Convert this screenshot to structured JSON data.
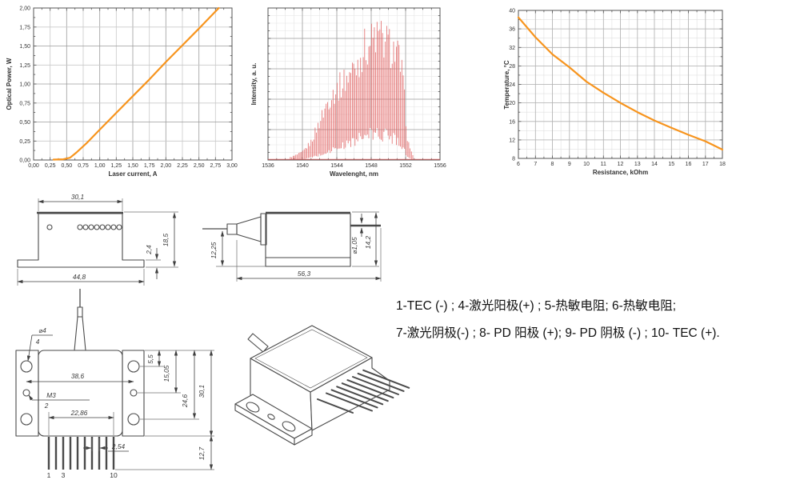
{
  "page": {
    "background": "#ffffff"
  },
  "chart_data": [
    {
      "id": "li_curve",
      "type": "line",
      "title": "",
      "xlabel": "Laser current, A",
      "ylabel": "Optical Power, W",
      "xlim": [
        0,
        3
      ],
      "ylim": [
        0,
        2
      ],
      "xtick_values": [
        0,
        0.25,
        0.5,
        0.75,
        1,
        1.25,
        1.5,
        1.75,
        2,
        2.25,
        2.5,
        2.75,
        3
      ],
      "xtick_labels": [
        "0,00",
        "0,25",
        "0,50",
        "0,75",
        "1,00",
        "1,25",
        "1,50",
        "1,75",
        "2,00",
        "2,25",
        "2,50",
        "2,75",
        "3,00"
      ],
      "ytick_values": [
        0,
        0.25,
        0.5,
        0.75,
        1,
        1.25,
        1.5,
        1.75,
        2
      ],
      "ytick_labels": [
        "0,00",
        "0,25",
        "0,50",
        "0,75",
        "1,00",
        "1,25",
        "1,50",
        "1,75",
        "2,00"
      ],
      "x_minor_step": 0.125,
      "y_minor_step": 0.125,
      "minor_grid": false,
      "grid_color": "#c9c9c9",
      "grid_emph_color": "#9b9b9b",
      "grid_emphasis_every": 2,
      "line_color": "#F7941D",
      "series": [
        {
          "name": "Optical power vs laser current",
          "x": [
            0.3,
            0.45,
            0.55,
            0.65,
            0.8,
            1.0,
            1.25,
            1.5,
            1.75,
            2.0,
            2.25,
            2.5,
            2.8
          ],
          "y": [
            0.005,
            0.01,
            0.03,
            0.1,
            0.22,
            0.4,
            0.62,
            0.84,
            1.06,
            1.29,
            1.51,
            1.73,
            2.0
          ]
        }
      ]
    },
    {
      "id": "spectrum",
      "type": "comb",
      "title": "",
      "xlabel": "Wavelenght, nm",
      "ylabel": "Intensity, a. u.",
      "xlim": [
        1536,
        1556
      ],
      "ylim": [
        0,
        1
      ],
      "xtick_values": [
        1536,
        1540,
        1544,
        1548,
        1552,
        1556
      ],
      "xtick_labels": [
        "1536",
        "1540",
        "1544",
        "1548",
        "1552",
        "1556"
      ],
      "ytick_values": [
        0.2,
        0.4,
        0.6,
        0.8
      ],
      "ytick_labels": [
        "",
        "",
        "",
        ""
      ],
      "x_minor_step": 1,
      "y_minor_step": 0.05,
      "minor_grid": true,
      "grid_color": "#9e9e9e",
      "grid_emph_color": "#9e9e9e",
      "minor_grid_color": "#e4e4e4",
      "line_color": "#E05A5A",
      "comb": {
        "pitch_nm": 0.16,
        "x_start": 1538.6,
        "x_end": 1552.9,
        "envelope_x": [
          1536,
          1538,
          1539,
          1540,
          1541,
          1542,
          1542.5,
          1543,
          1543.5,
          1544,
          1545,
          1546,
          1546.5,
          1547,
          1547.5,
          1548,
          1548.5,
          1549,
          1549.5,
          1550,
          1550.5,
          1551,
          1551.3,
          1551.6,
          1551.9,
          1552.2,
          1552.5,
          1553,
          1554,
          1556
        ],
        "envelope_hi": [
          0.004,
          0.01,
          0.03,
          0.06,
          0.14,
          0.3,
          0.38,
          0.47,
          0.52,
          0.55,
          0.63,
          0.72,
          0.76,
          0.86,
          0.89,
          0.93,
          0.97,
          0.95,
          0.93,
          0.9,
          0.87,
          0.82,
          0.78,
          0.66,
          0.45,
          0.18,
          0.08,
          0.03,
          0.01,
          0.004
        ],
        "envelope_lo": [
          0,
          0,
          0.004,
          0.008,
          0.02,
          0.045,
          0.055,
          0.07,
          0.09,
          0.1,
          0.13,
          0.17,
          0.18,
          0.2,
          0.21,
          0.22,
          0.23,
          0.22,
          0.22,
          0.21,
          0.2,
          0.19,
          0.17,
          0.13,
          0.08,
          0.03,
          0.012,
          0.005,
          0,
          0
        ]
      }
    },
    {
      "id": "ntc",
      "type": "line",
      "title": "",
      "xlabel": "Resistance, kOhm",
      "ylabel": "Temperature, °C",
      "xlim": [
        6,
        18
      ],
      "ylim": [
        8,
        40
      ],
      "xtick_values": [
        6,
        7,
        8,
        9,
        10,
        11,
        12,
        13,
        14,
        15,
        16,
        17,
        18
      ],
      "xtick_labels": [
        "6",
        "7",
        "8",
        "9",
        "10",
        "11",
        "12",
        "13",
        "14",
        "15",
        "16",
        "17",
        "18"
      ],
      "ytick_values": [
        8,
        12,
        16,
        20,
        24,
        28,
        32,
        36,
        40
      ],
      "ytick_labels": [
        "8",
        "12",
        "16",
        "20",
        "24",
        "28",
        "32",
        "36",
        "40"
      ],
      "x_minor_step": 0.5,
      "y_minor_step": 2,
      "minor_grid": true,
      "grid_color": "#b2b2b2",
      "grid_emph_color": "#b2b2b2",
      "minor_grid_color": "#e0e0e0",
      "line_color": "#F7941D",
      "series": [
        {
          "name": "Thermistor temperature vs resistance",
          "x": [
            6,
            7,
            8,
            9,
            10,
            11,
            12,
            13,
            14,
            15,
            16,
            17,
            18
          ],
          "y": [
            38.5,
            34.2,
            30.5,
            27.7,
            24.6,
            22.2,
            20.0,
            18.0,
            16.2,
            14.6,
            13.1,
            11.7,
            9.9
          ]
        }
      ]
    }
  ],
  "drawings": {
    "front": {
      "top_width": "30,1",
      "flange_width": "44,8",
      "height": "18,5",
      "flange_thickness": "2,4"
    },
    "side": {
      "fiber_height": "12,25",
      "length": "56,3",
      "pin_diameter": "⌀1,05",
      "height": "14,2"
    },
    "top": {
      "hole_diameter": "⌀4",
      "hole_qty": "4",
      "body_width": "38,6",
      "thread": "M3",
      "thread_qty": "2",
      "pin_span": "22,86",
      "pin_pitch": "2,54",
      "dim_a": "5,5",
      "dim_b": "15,05",
      "dim_c": "24,6",
      "dim_d": "30,1",
      "pin_length": "12,7",
      "pin_label_1": "1",
      "pin_label_3": "3",
      "pin_label_10": "10"
    }
  },
  "pinout": {
    "line1": "1-TEC (-) ;  4-激光阳极(+) ; 5-热敏电阻; 6-热敏电阻;",
    "line2": "7-激光阴极(-) ; 8- PD 阳极 (+);  9- PD 阴极 (-) ; 10- TEC (+)."
  }
}
